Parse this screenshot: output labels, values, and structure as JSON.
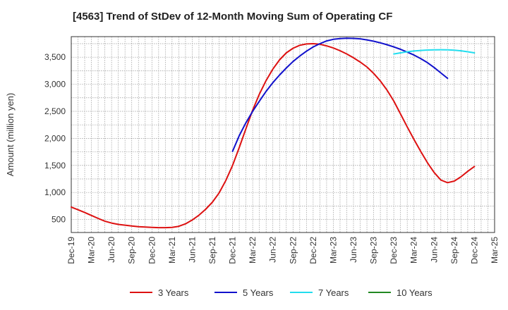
{
  "chart_data": {
    "type": "line",
    "title": "[4563]  Trend of StDev of 12-Month Moving Sum of Operating CF",
    "ylabel": "Amount (million yen)",
    "xlabel": "",
    "x_ticks": [
      "Dec-19",
      "Mar-20",
      "Jun-20",
      "Sep-20",
      "Dec-20",
      "Mar-21",
      "Jun-21",
      "Sep-21",
      "Dec-21",
      "Mar-22",
      "Jun-22",
      "Sep-22",
      "Dec-22",
      "Mar-23",
      "Jun-23",
      "Sep-23",
      "Dec-23",
      "Mar-24",
      "Jun-24",
      "Sep-24",
      "Dec-24",
      "Mar-25"
    ],
    "y_ticks": [
      500,
      1000,
      1500,
      2000,
      2500,
      3000,
      3500
    ],
    "y_tick_labels": [
      "500",
      "1,000",
      "1,500",
      "2,000",
      "2,500",
      "3,000",
      "3,500"
    ],
    "ylim": [
      260,
      3880
    ],
    "grid": true,
    "legend_position": "bottom",
    "series": [
      {
        "name": "3 Years",
        "color": "#dd1111",
        "start_month": 0,
        "values": [
          730,
          680,
          630,
          575,
          520,
          470,
          435,
          410,
          395,
          380,
          368,
          360,
          355,
          350,
          350,
          355,
          375,
          420,
          490,
          580,
          690,
          820,
          990,
          1220,
          1500,
          1830,
          2180,
          2520,
          2820,
          3070,
          3280,
          3450,
          3580,
          3665,
          3720,
          3745,
          3750,
          3740,
          3710,
          3670,
          3620,
          3560,
          3490,
          3410,
          3320,
          3200,
          3060,
          2890,
          2690,
          2450,
          2210,
          1980,
          1760,
          1550,
          1370,
          1230,
          1180,
          1210,
          1290,
          1390,
          1480
        ]
      },
      {
        "name": "5 Years",
        "color": "#1111cc",
        "start_month": 24,
        "values": [
          1760,
          2050,
          2290,
          2500,
          2690,
          2870,
          3030,
          3170,
          3300,
          3420,
          3520,
          3610,
          3690,
          3750,
          3800,
          3830,
          3845,
          3850,
          3848,
          3840,
          3820,
          3795,
          3765,
          3730,
          3690,
          3645,
          3595,
          3540,
          3475,
          3400,
          3310,
          3210,
          3110
        ]
      },
      {
        "name": "7 Years",
        "color": "#22ddee",
        "start_month": 48,
        "values": [
          3560,
          3580,
          3600,
          3615,
          3625,
          3632,
          3636,
          3638,
          3636,
          3630,
          3618,
          3600,
          3580
        ]
      },
      {
        "name": "10 Years",
        "color": "#228822",
        "start_month": 60,
        "values": []
      }
    ]
  }
}
